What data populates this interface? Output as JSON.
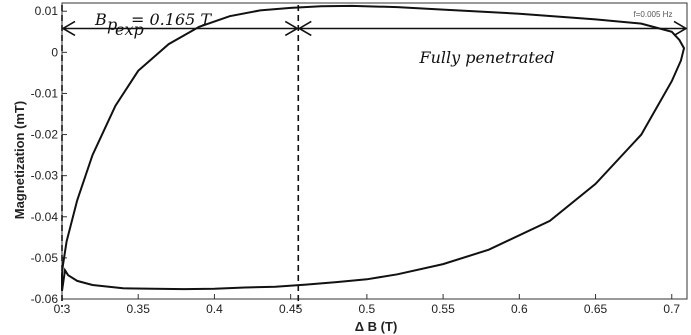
{
  "chart_data": {
    "type": "line",
    "xlabel": "Δ B (T)",
    "ylabel": "Magnetization (mT)",
    "xlim": [
      0.3,
      0.71
    ],
    "ylim": [
      -0.06,
      0.012
    ],
    "xticks": [
      0.3,
      0.35,
      0.4,
      0.45,
      0.5,
      0.55,
      0.6,
      0.65,
      0.7
    ],
    "xtick_labels": [
      "0.3",
      "0.35",
      "0.4",
      "0.45",
      "0.5",
      "0.55",
      "0.6",
      "0.65",
      "0.7"
    ],
    "yticks": [
      -0.06,
      -0.05,
      -0.04,
      -0.03,
      -0.02,
      -0.01,
      0,
      0.01
    ],
    "ytick_labels": [
      "-0.06",
      "-0.05",
      "-0.04",
      "-0.03",
      "-0.02",
      "-0.01",
      "0",
      "0.01"
    ],
    "grid": false,
    "frequency_label": "f=0.005 Hz",
    "series": [
      {
        "x": [
          0.3,
          0.3,
          0.3005,
          0.303,
          0.31,
          0.32,
          0.335,
          0.35,
          0.37,
          0.39,
          0.41,
          0.43,
          0.45,
          0.47,
          0.49,
          0.52,
          0.55,
          0.6,
          0.65,
          0.68,
          0.7,
          0.705,
          0.708,
          0.706,
          0.7,
          0.68,
          0.65,
          0.62,
          0.58,
          0.55,
          0.52,
          0.5,
          0.48,
          0.46,
          0.44,
          0.42,
          0.4,
          0.38,
          0.36,
          0.34,
          0.32,
          0.31,
          0.304,
          0.302,
          0.3
        ],
        "y": [
          -0.058,
          -0.054,
          -0.052,
          -0.046,
          -0.036,
          -0.025,
          -0.013,
          -0.0045,
          0.002,
          0.0062,
          0.0088,
          0.0102,
          0.0108,
          0.0112,
          0.0113,
          0.011,
          0.0104,
          0.0094,
          0.008,
          0.007,
          0.005,
          0.003,
          0.001,
          -0.002,
          -0.007,
          -0.02,
          -0.032,
          -0.041,
          -0.048,
          -0.0515,
          -0.054,
          -0.0552,
          -0.0559,
          -0.0565,
          -0.057,
          -0.0572,
          -0.0575,
          -0.0576,
          -0.0575,
          -0.0574,
          -0.0566,
          -0.0556,
          -0.0542,
          -0.053,
          -0.058
        ]
      }
    ],
    "markers": [
      {
        "x": 0.3,
        "style": "dashed"
      },
      {
        "x": 0.455,
        "style": "dashed"
      }
    ],
    "annotations": [
      {
        "text": "B_{p_{exp}} = 0.165 T",
        "from": 0.3,
        "to": 0.455,
        "y": 0.0058
      },
      {
        "text": "Fully penetrated",
        "from": 0.455,
        "to": 0.71,
        "y": 0.0058
      }
    ]
  }
}
